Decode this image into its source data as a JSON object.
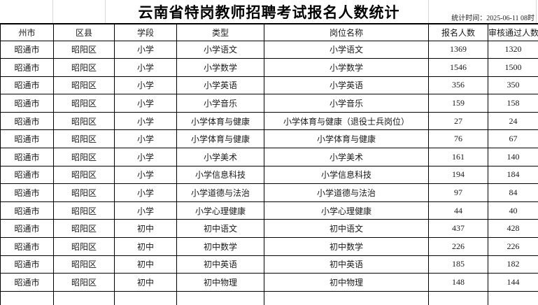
{
  "header": {
    "title": "云南省特岗教师招聘考试报名人数统计",
    "stat_time": "统计时间：2025-06-11 08时"
  },
  "table": {
    "columns": [
      "州市",
      "区县",
      "学段",
      "类型",
      "岗位名称",
      "报名人数",
      "审核通过人数"
    ],
    "rows": [
      [
        "昭通市",
        "昭阳区",
        "小学",
        "小学语文",
        "小学语文",
        "1369",
        "1320"
      ],
      [
        "昭通市",
        "昭阳区",
        "小学",
        "小学数学",
        "小学数学",
        "1546",
        "1500"
      ],
      [
        "昭通市",
        "昭阳区",
        "小学",
        "小学英语",
        "小学英语",
        "356",
        "350"
      ],
      [
        "昭通市",
        "昭阳区",
        "小学",
        "小学音乐",
        "小学音乐",
        "159",
        "158"
      ],
      [
        "昭通市",
        "昭阳区",
        "小学",
        "小学体育与健康",
        "小学体育与健康（退役士兵岗位）",
        "27",
        "24"
      ],
      [
        "昭通市",
        "昭阳区",
        "小学",
        "小学体育与健康",
        "小学体育与健康",
        "76",
        "67"
      ],
      [
        "昭通市",
        "昭阳区",
        "小学",
        "小学美术",
        "小学美术",
        "161",
        "140"
      ],
      [
        "昭通市",
        "昭阳区",
        "小学",
        "小学信息科技",
        "小学信息科技",
        "194",
        "184"
      ],
      [
        "昭通市",
        "昭阳区",
        "小学",
        "小学道德与法治",
        "小学道德与法治",
        "97",
        "84"
      ],
      [
        "昭通市",
        "昭阳区",
        "小学",
        "小学心理健康",
        "小学心理健康",
        "44",
        "40"
      ],
      [
        "昭通市",
        "昭阳区",
        "初中",
        "初中语文",
        "初中语文",
        "437",
        "428"
      ],
      [
        "昭通市",
        "昭阳区",
        "初中",
        "初中数学",
        "初中数学",
        "226",
        "226"
      ],
      [
        "昭通市",
        "昭阳区",
        "初中",
        "初中英语",
        "初中英语",
        "185",
        "182"
      ],
      [
        "昭通市",
        "昭阳区",
        "初中",
        "初中物理",
        "初中物理",
        "148",
        "144"
      ]
    ]
  },
  "colors": {
    "background": "#ffffff",
    "border": "#000000",
    "text": "#1a1a1a",
    "faint_gridline": "#d9d9d9"
  }
}
